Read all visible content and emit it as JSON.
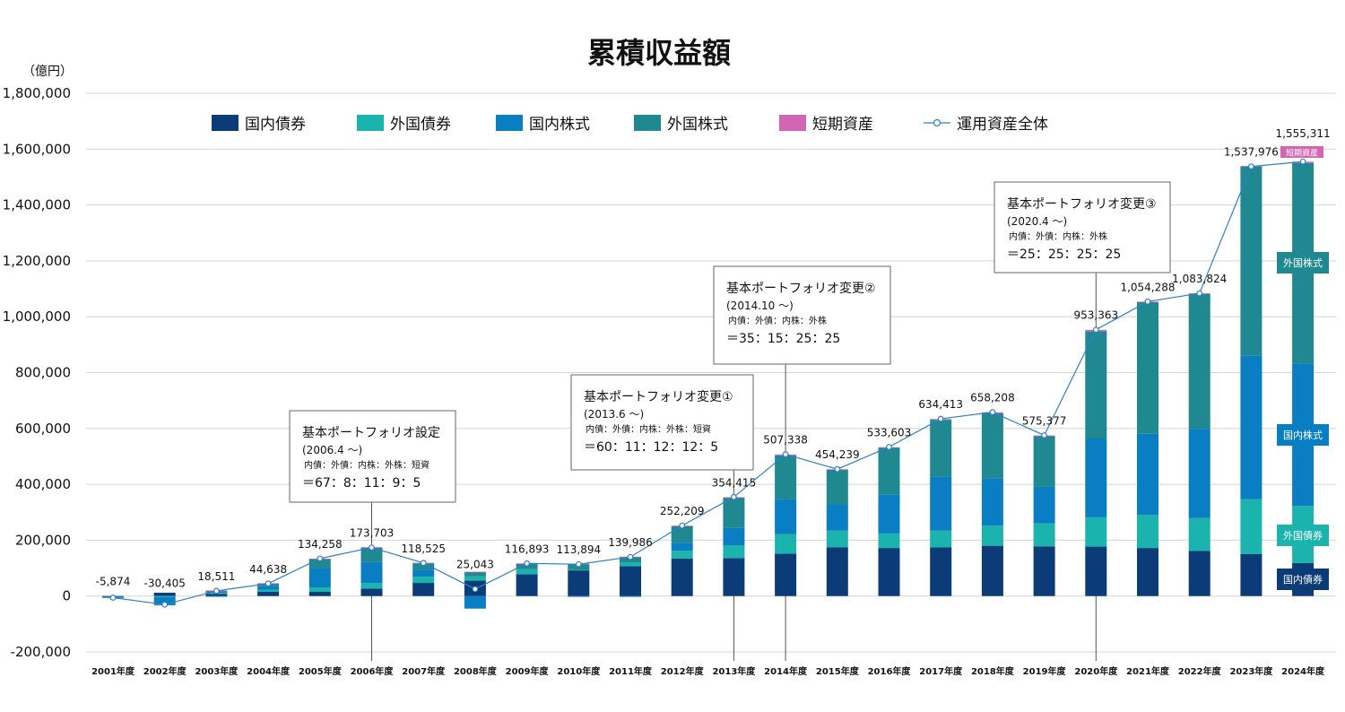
{
  "chart_data": {
    "type": "bar",
    "stacked": true,
    "title": "累積収益額",
    "ylabel": "（億円）",
    "ylim": [
      -200000,
      1800000
    ],
    "yticks": [
      -200000,
      0,
      200000,
      400000,
      600000,
      800000,
      1000000,
      1200000,
      1400000,
      1600000,
      1800000
    ],
    "ytick_labels": [
      "-200,000",
      "0",
      "200,000",
      "400,000",
      "600,000",
      "800,000",
      "1,000,000",
      "1,200,000",
      "1,400,000",
      "1,600,000",
      "1,800,000"
    ],
    "categories": [
      "2001年度",
      "2002年度",
      "2003年度",
      "2004年度",
      "2005年度",
      "2006年度",
      "2007年度",
      "2008年度",
      "2009年度",
      "2010年度",
      "2011年度",
      "2012年度",
      "2013年度",
      "2014年度",
      "2015年度",
      "2016年度",
      "2017年度",
      "2018年度",
      "2019年度",
      "2020年度",
      "2021年度",
      "2022年度",
      "2023年度",
      "2024年度"
    ],
    "series": [
      {
        "name": "国内債券",
        "color": "#0b3c78",
        "values": [
          -3000,
          12000,
          8000,
          15000,
          15000,
          27000,
          47000,
          55000,
          78000,
          92000,
          107000,
          134000,
          136000,
          152000,
          174000,
          172000,
          174000,
          180000,
          178000,
          177000,
          172000,
          162000,
          150000,
          118000
        ]
      },
      {
        "name": "外国債券",
        "color": "#1ab3ae",
        "values": [
          -1000,
          -3000,
          3000,
          7000,
          15000,
          20000,
          22000,
          16000,
          18000,
          2000,
          14000,
          28000,
          46000,
          70000,
          60000,
          52000,
          60000,
          72000,
          82000,
          105000,
          118000,
          117000,
          197000,
          205000
        ]
      },
      {
        "name": "国内株式",
        "color": "#0a7ec2",
        "values": [
          -2000,
          -28000,
          -2000,
          15000,
          70000,
          75000,
          25000,
          -45000,
          0,
          -3000,
          -3000,
          29000,
          62000,
          125000,
          94000,
          139000,
          194000,
          170000,
          131000,
          282000,
          291000,
          320000,
          513000,
          510000
        ]
      },
      {
        "name": "外国株式",
        "color": "#208890",
        "values": [
          0,
          -1000,
          8000,
          8000,
          33000,
          52000,
          24000,
          15000,
          20000,
          20000,
          19000,
          60000,
          108000,
          157000,
          124000,
          168000,
          203000,
          233000,
          181000,
          384000,
          471000,
          482000,
          677000,
          717000
        ]
      },
      {
        "name": "短期資産",
        "color": "#d266b4",
        "values": [
          0,
          0,
          1000,
          1000,
          1000,
          1000,
          1000,
          1000,
          1000,
          2000,
          1000,
          1000,
          2000,
          3000,
          2000,
          2000,
          3000,
          3000,
          3000,
          5000,
          2000,
          3000,
          3000,
          5000
        ]
      }
    ],
    "line": {
      "name": "運用資産全体",
      "color": "#2f7fc7",
      "values": [
        -5874,
        -30405,
        18511,
        44638,
        134258,
        173703,
        118525,
        25043,
        116893,
        113894,
        139986,
        252209,
        354415,
        507338,
        454239,
        533603,
        634413,
        658208,
        575377,
        953363,
        1054288,
        1083824,
        1537976,
        1555311
      ],
      "labels": [
        "-5,874",
        "-30,405",
        "18,511",
        "44,638",
        "134,258",
        "173,703",
        "118,525",
        "25,043",
        "116,893",
        "113,894",
        "139,986",
        "252,209",
        "354,415",
        "507,338",
        "454,239",
        "533,603",
        "634,413",
        "658,208",
        "575,377",
        "953,363",
        "1,054,288",
        "1,083,824",
        "1,537,976",
        "1,555,311"
      ]
    },
    "legend": [
      "国内債券",
      "外国債券",
      "国内株式",
      "外国株式",
      "短期資産",
      "運用資産全体"
    ],
    "legend_position": "top",
    "grid": true,
    "annotations": [
      {
        "title": "基本ポートフォリオ設定",
        "date": "(2006.4 ～)",
        "sub": "内債：外債：内株：外株：短資",
        "ratio": "＝67：8：11：9：5",
        "category": "2006年度"
      },
      {
        "title": "基本ポートフォリオ変更①",
        "date": "(2013.6 ～)",
        "sub": "内債：外債：内株：外株：短資",
        "ratio": "＝60：11：12：12：5",
        "category": "2013年度"
      },
      {
        "title": "基本ポートフォリオ変更②",
        "date": "(2014.10 ～)",
        "sub": "内債：外債：内株：外株",
        "ratio": "＝35：15：25：25",
        "category": "2014年度"
      },
      {
        "title": "基本ポートフォリオ変更③",
        "date": "(2020.4 ～)",
        "sub": "内債：外債：内株：外株",
        "ratio": "＝25：25：25：25",
        "category": "2020年度"
      }
    ],
    "side_labels": [
      {
        "text": "短期資産",
        "series": "短期資産"
      },
      {
        "text": "外国株式",
        "series": "外国株式"
      },
      {
        "text": "国内株式",
        "series": "国内株式"
      },
      {
        "text": "外国債券",
        "series": "外国債券"
      },
      {
        "text": "国内債券",
        "series": "国内債券"
      }
    ]
  }
}
